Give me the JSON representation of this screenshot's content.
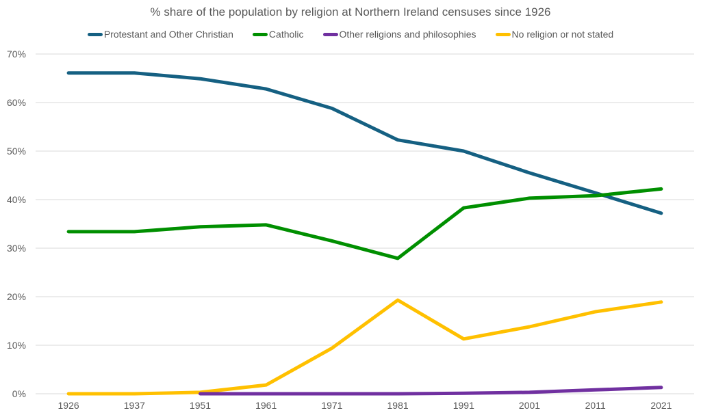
{
  "chart_data": {
    "type": "line",
    "title": "% share of the population by religion at Northern Ireland censuses since 1926",
    "xlabel": "",
    "ylabel": "",
    "categories": [
      "1926",
      "1937",
      "1951",
      "1961",
      "1971",
      "1981",
      "1991",
      "2001",
      "2011",
      "2021"
    ],
    "ylim": [
      0,
      70
    ],
    "yticks": [
      0,
      10,
      20,
      30,
      40,
      50,
      60,
      70
    ],
    "ytick_labels": [
      "0%",
      "10%",
      "20%",
      "30%",
      "40%",
      "50%",
      "60%",
      "70%"
    ],
    "grid": true,
    "legend_position": "top",
    "series": [
      {
        "name": "Protestant and Other Christian",
        "color": "#156082",
        "values": [
          66.1,
          66.1,
          64.9,
          62.8,
          58.8,
          52.3,
          50.0,
          45.5,
          41.4,
          37.2
        ]
      },
      {
        "name": "Catholic",
        "color": "#008f00",
        "values": [
          33.4,
          33.4,
          34.4,
          34.8,
          31.5,
          27.9,
          38.3,
          40.3,
          40.8,
          42.2
        ]
      },
      {
        "name": "Other religions and philosophies",
        "color": "#7030a0",
        "values": [
          null,
          null,
          0.0,
          0.0,
          0.0,
          0.0,
          0.1,
          0.3,
          0.8,
          1.3
        ]
      },
      {
        "name": "No religion or not stated",
        "color": "#ffc000",
        "values": [
          0.0,
          0.0,
          0.3,
          1.8,
          9.4,
          19.3,
          11.3,
          13.8,
          16.9,
          18.9
        ]
      }
    ]
  }
}
